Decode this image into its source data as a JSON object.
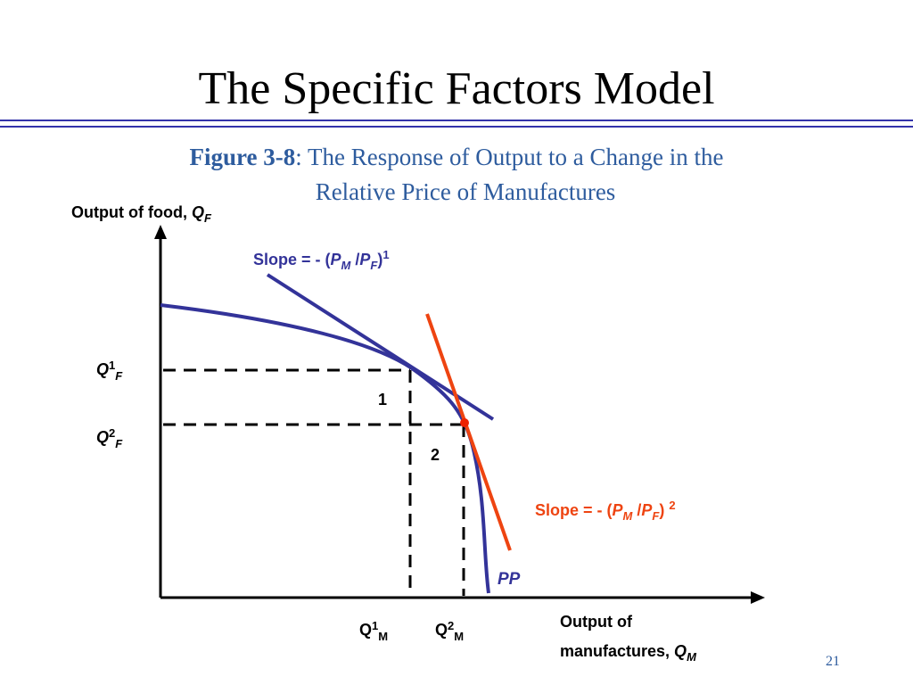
{
  "title": "The Specific Factors Model",
  "caption": {
    "label": "Figure 3-8",
    "lines": [
      ": The Response of Output to a Change in the",
      "Relative Price of Manufactures"
    ]
  },
  "diagram": {
    "y_axis_label": [
      "Output of food, ",
      "Q",
      "F"
    ],
    "x_axis_label": [
      "Output of",
      "manufactures, ",
      "Q",
      "M"
    ],
    "slope_1": [
      "Slope = - (",
      "P",
      "M",
      " /",
      "P",
      "F",
      ")",
      "1"
    ],
    "slope_2": [
      "Slope = - (",
      "P",
      "M",
      " /",
      "P",
      "F",
      ") ",
      "2"
    ],
    "curve_label": "PP",
    "point_1": "1",
    "point_2": "2",
    "q1_f": [
      "Q",
      "1",
      "F"
    ],
    "q2_f": [
      "Q",
      "2",
      "F"
    ],
    "q1_m": [
      "Q",
      "1",
      "M"
    ],
    "q2_m": [
      "Q",
      "2",
      "M"
    ]
  },
  "page_number": "21"
}
